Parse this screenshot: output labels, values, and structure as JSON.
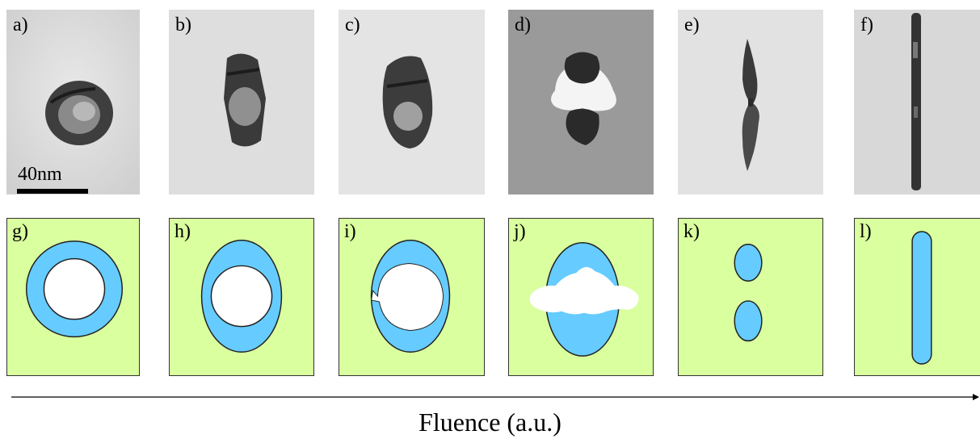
{
  "panels": {
    "a": "a)",
    "b": "b)",
    "c": "c)",
    "d": "d)",
    "e": "e)",
    "f": "f)",
    "g": "g)",
    "h": "h)",
    "i": "i)",
    "j": "j)",
    "k": "k)",
    "l": "l)"
  },
  "scale_bar": "40nm",
  "axis_label": "Fluence (a.u.)",
  "colors": {
    "schematic_background": "#d9ff9e",
    "particle_shell": "#66ccff",
    "void": "#ffffff"
  }
}
